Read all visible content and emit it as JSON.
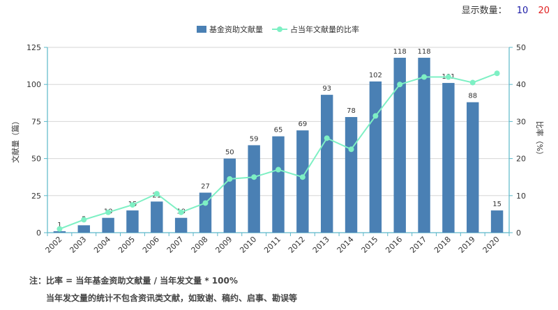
{
  "display_count": {
    "label": "显示数量：",
    "options": [
      "10",
      "20"
    ]
  },
  "footnotes": [
    "注：比率 = 当年基金资助文献量 / 当年发文量 * 100%",
    "当年发文量的统计不包含资讯类文献，如致谢、稿约、启事、勘误等"
  ],
  "colors": {
    "bar": "#4a80b4",
    "line": "#7ef0c4",
    "axis": "#5bb8c9",
    "grid": "#d6d6d6"
  },
  "chart_data": {
    "type": "bar",
    "categories": [
      "2002",
      "2003",
      "2004",
      "2005",
      "2006",
      "2007",
      "2008",
      "2009",
      "2010",
      "2011",
      "2012",
      "2013",
      "2014",
      "2015",
      "2016",
      "2017",
      "2018",
      "2019",
      "2020"
    ],
    "series": [
      {
        "name": "基金资助文献量",
        "type": "bar",
        "axis": "left",
        "values": [
          1,
          5,
          10,
          15,
          21,
          10,
          27,
          50,
          59,
          65,
          69,
          93,
          78,
          102,
          118,
          118,
          101,
          88,
          15
        ]
      },
      {
        "name": "占当年文献量的比率",
        "type": "line",
        "axis": "right",
        "values": [
          1.0,
          3.5,
          5.5,
          7.5,
          10.5,
          5.5,
          8.0,
          14.5,
          15.0,
          17.0,
          15.0,
          25.5,
          22.5,
          31.5,
          40.0,
          42.0,
          42.0,
          40.5,
          43.0
        ]
      }
    ],
    "ylabel": "文献量（篇）",
    "y2label": "比率（%）",
    "ylim": [
      0,
      125
    ],
    "y2lim": [
      0,
      50
    ],
    "yticks": [
      0,
      25,
      50,
      75,
      100,
      125
    ],
    "y2ticks": [
      0,
      10,
      20,
      30,
      40,
      50
    ],
    "legend_position": "top-center"
  }
}
